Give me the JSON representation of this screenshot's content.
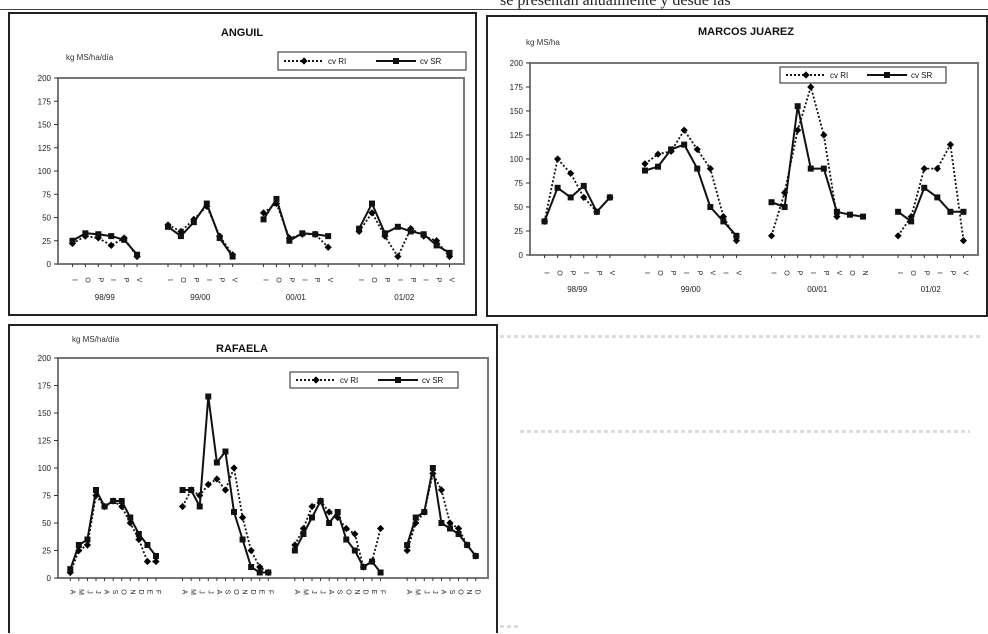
{
  "page": {
    "cut_text": "se presentan anualmente y desde las"
  },
  "colors": {
    "line": "#111111",
    "marker": "#000000",
    "blue_tint": "#2b2b7a",
    "frame": "#222222"
  },
  "chart_data": [
    {
      "type": "line",
      "title": "ANGUIL",
      "ylabel": "kg MS/ha/día",
      "ylim": [
        0,
        200
      ],
      "yticks": [
        0,
        25,
        50,
        75,
        100,
        125,
        150,
        175,
        200
      ],
      "legend": {
        "position": "top-right",
        "entries": [
          "cv RI",
          "cv SR"
        ]
      },
      "grid": false,
      "seasons": [
        "98/99",
        "99/00",
        "00/01",
        "01/02"
      ],
      "series": [
        {
          "name": "cv RI",
          "style": "dotted",
          "marker": "diamond",
          "segments": [
            {
              "x": [
                "I",
                "O",
                "P",
                "I",
                "P",
                "V"
              ],
              "y": [
                22,
                30,
                28,
                20,
                28,
                8
              ]
            },
            {
              "x": [
                "I",
                "O",
                "P",
                "I",
                "P",
                "V"
              ],
              "y": [
                42,
                35,
                48,
                62,
                30,
                10
              ]
            },
            {
              "x": [
                "I",
                "O",
                "P",
                "I",
                "P",
                "V"
              ],
              "y": [
                55,
                65,
                28,
                32,
                32,
                18
              ]
            },
            {
              "x": [
                "I",
                "O",
                "P",
                "I",
                "P",
                "I",
                "P",
                "V"
              ],
              "y": [
                35,
                55,
                30,
                8,
                38,
                30,
                25,
                8
              ]
            }
          ]
        },
        {
          "name": "cv SR",
          "style": "solid",
          "marker": "square",
          "segments": [
            {
              "x": [
                "I",
                "O",
                "P",
                "I",
                "P",
                "V"
              ],
              "y": [
                25,
                33,
                32,
                30,
                26,
                10
              ]
            },
            {
              "x": [
                "I",
                "O",
                "P",
                "I",
                "P",
                "V"
              ],
              "y": [
                40,
                30,
                45,
                65,
                28,
                8
              ]
            },
            {
              "x": [
                "I",
                "O",
                "P",
                "I",
                "P",
                "V"
              ],
              "y": [
                48,
                70,
                25,
                33,
                32,
                30
              ]
            },
            {
              "x": [
                "I",
                "O",
                "P",
                "I",
                "P",
                "I",
                "P",
                "V"
              ],
              "y": [
                38,
                65,
                33,
                40,
                35,
                32,
                20,
                12
              ]
            }
          ]
        }
      ]
    },
    {
      "type": "line",
      "title": "MARCOS JUAREZ",
      "ylabel": "kg MS/ha",
      "ylim": [
        0,
        200
      ],
      "yticks": [
        0,
        25,
        50,
        75,
        100,
        125,
        150,
        175,
        200
      ],
      "legend": {
        "position": "top-right",
        "entries": [
          "cv RI",
          "cv SR"
        ]
      },
      "grid": false,
      "seasons": [
        "98/99",
        "99/00",
        "00/01",
        "01/02"
      ],
      "series": [
        {
          "name": "cv RI",
          "style": "dotted",
          "marker": "diamond",
          "segments": [
            {
              "x": [
                "I",
                "O",
                "P",
                "I",
                "P",
                "V"
              ],
              "y": [
                35,
                100,
                85,
                60,
                45,
                60
              ]
            },
            {
              "x": [
                "I",
                "O",
                "P",
                "I",
                "P",
                "V",
                "I",
                "V"
              ],
              "y": [
                95,
                105,
                108,
                130,
                110,
                90,
                40,
                15
              ]
            },
            {
              "x": [
                "I",
                "O",
                "P",
                "I",
                "P",
                "V"
              ],
              "y": [
                20,
                65,
                130,
                175,
                125,
                40
              ]
            },
            {
              "x": [
                "I",
                "O",
                "P",
                "I",
                "P",
                "V"
              ],
              "y": [
                20,
                40,
                90,
                90,
                115,
                15
              ]
            }
          ]
        },
        {
          "name": "cv SR",
          "style": "solid",
          "marker": "square",
          "segments": [
            {
              "x": [
                "I",
                "O",
                "P",
                "I",
                "P",
                "V"
              ],
              "y": [
                35,
                70,
                60,
                72,
                45,
                60
              ]
            },
            {
              "x": [
                "I",
                "O",
                "P",
                "I",
                "P",
                "V",
                "I",
                "V"
              ],
              "y": [
                88,
                92,
                110,
                115,
                90,
                50,
                35,
                20
              ]
            },
            {
              "x": [
                "I",
                "O",
                "P",
                "I",
                "P",
                "I",
                "P",
                "V"
              ],
              "y": [
                55,
                50,
                155,
                90,
                90,
                45,
                42,
                40
              ]
            },
            {
              "x": [
                "I",
                "O",
                "P",
                "I",
                "P",
                "V"
              ],
              "y": [
                45,
                35,
                70,
                60,
                45,
                45
              ]
            }
          ]
        }
      ]
    },
    {
      "type": "line",
      "title": "RAFAELA",
      "ylabel": "kg MS/ha/día",
      "ylim": [
        0,
        200
      ],
      "yticks": [
        0,
        25,
        50,
        75,
        100,
        125,
        150,
        175,
        200
      ],
      "legend": {
        "position": "top-right",
        "entries": [
          "cv RI",
          "cv SR"
        ]
      },
      "grid": false,
      "series": [
        {
          "name": "cv RI",
          "style": "dotted",
          "marker": "diamond",
          "segments": [
            {
              "y": [
                5,
                25,
                30,
                75,
                65,
                70,
                65,
                50,
                35,
                15,
                15
              ]
            },
            {
              "y": [
                65,
                80,
                75,
                85,
                90,
                80,
                100,
                55,
                25,
                10,
                5
              ]
            },
            {
              "y": [
                30,
                45,
                65,
                70,
                60,
                55,
                45,
                40,
                10,
                15,
                45
              ]
            },
            {
              "y": [
                25,
                50,
                60,
                95,
                80,
                50,
                45,
                30,
                20
              ]
            }
          ]
        },
        {
          "name": "cv SR",
          "style": "solid",
          "marker": "square",
          "segments": [
            {
              "y": [
                8,
                30,
                35,
                80,
                65,
                70,
                70,
                55,
                40,
                30,
                20
              ]
            },
            {
              "y": [
                80,
                80,
                65,
                165,
                105,
                115,
                60,
                35,
                10,
                5,
                5
              ]
            },
            {
              "y": [
                25,
                40,
                55,
                70,
                50,
                60,
                35,
                25,
                10,
                15,
                5
              ]
            },
            {
              "y": [
                30,
                55,
                60,
                100,
                50,
                45,
                40,
                30,
                20
              ]
            }
          ]
        }
      ]
    }
  ]
}
